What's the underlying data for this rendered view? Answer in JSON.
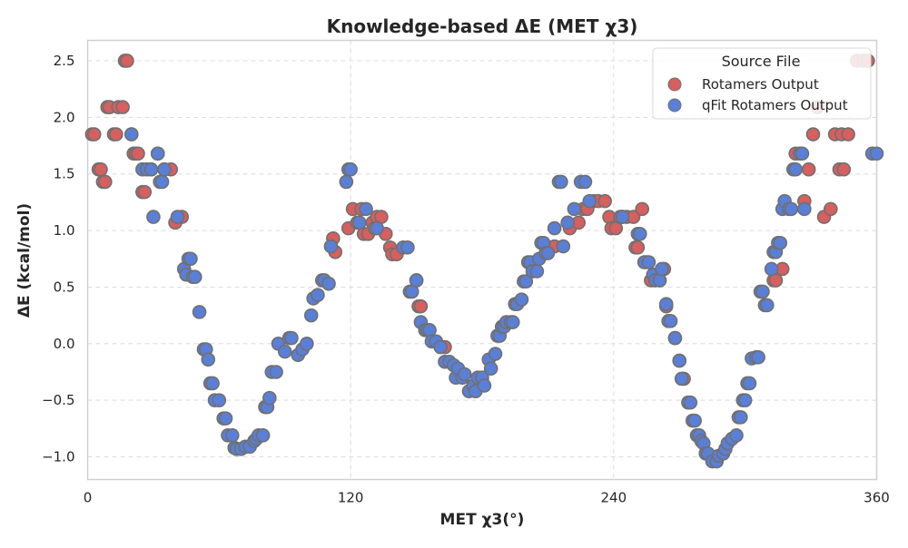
{
  "chart_data": {
    "type": "scatter",
    "title": "Knowledge-based ΔE (MET χ3)",
    "xlabel": "MET χ3(°)",
    "ylabel": "ΔE (kcal/mol)",
    "xlim": [
      0,
      360
    ],
    "ylim": [
      -1.2,
      2.68
    ],
    "xticks": [
      0,
      120,
      240,
      360
    ],
    "yticks": [
      -1.0,
      -0.5,
      0.0,
      0.5,
      1.0,
      1.5,
      2.0,
      2.5
    ],
    "xtick_labels": [
      "0",
      "120",
      "240",
      "360"
    ],
    "ytick_labels": [
      "−1.0",
      "−0.5",
      "0.0",
      "0.5",
      "1.0",
      "1.5",
      "2.0",
      "2.5"
    ],
    "grid": true,
    "legend": {
      "title": "Source File",
      "position": "top-right"
    },
    "series": [
      {
        "name": "Rotamers Output",
        "color": "#d65f5f",
        "points": [
          [
            2,
            1.85
          ],
          [
            3,
            1.85
          ],
          [
            5,
            1.54
          ],
          [
            6,
            1.54
          ],
          [
            7,
            1.43
          ],
          [
            8,
            1.43
          ],
          [
            9,
            2.09
          ],
          [
            10,
            2.09
          ],
          [
            12,
            1.85
          ],
          [
            13,
            1.85
          ],
          [
            14,
            2.09
          ],
          [
            16,
            2.09
          ],
          [
            17,
            2.5
          ],
          [
            18,
            2.5
          ],
          [
            20,
            1.85
          ],
          [
            21,
            1.68
          ],
          [
            22,
            1.68
          ],
          [
            23,
            1.68
          ],
          [
            25,
            1.34
          ],
          [
            26,
            1.34
          ],
          [
            29,
            1.54
          ],
          [
            32,
            1.68
          ],
          [
            35,
            1.54
          ],
          [
            38,
            1.54
          ],
          [
            40,
            1.07
          ],
          [
            43,
            1.12
          ],
          [
            112,
            0.93
          ],
          [
            113,
            0.81
          ],
          [
            119,
            1.02
          ],
          [
            121,
            1.19
          ],
          [
            123,
            1.07
          ],
          [
            125,
            1.19
          ],
          [
            126,
            0.97
          ],
          [
            128,
            0.97
          ],
          [
            130,
            1.07
          ],
          [
            131,
            1.02
          ],
          [
            132,
            1.12
          ],
          [
            134,
            1.12
          ],
          [
            136,
            0.97
          ],
          [
            138,
            0.85
          ],
          [
            139,
            0.79
          ],
          [
            141,
            0.79
          ],
          [
            150,
            0.56
          ],
          [
            151,
            0.33
          ],
          [
            152,
            0.33
          ],
          [
            163,
            -0.03
          ],
          [
            213,
            0.86
          ],
          [
            220,
            1.02
          ],
          [
            224,
            1.07
          ],
          [
            226,
            1.19
          ],
          [
            228,
            1.19
          ],
          [
            231,
            1.26
          ],
          [
            233,
            1.26
          ],
          [
            236,
            1.26
          ],
          [
            238,
            1.12
          ],
          [
            239,
            1.02
          ],
          [
            241,
            1.02
          ],
          [
            243,
            1.12
          ],
          [
            244,
            1.12
          ],
          [
            246,
            1.12
          ],
          [
            249,
            1.12
          ],
          [
            250,
            0.85
          ],
          [
            251,
            0.85
          ],
          [
            253,
            1.19
          ],
          [
            255,
            0.72
          ],
          [
            257,
            0.56
          ],
          [
            261,
            0.56
          ],
          [
            263,
            0.66
          ],
          [
            264,
            0.33
          ],
          [
            268,
            0.05
          ],
          [
            270,
            -0.15
          ],
          [
            272,
            -0.31
          ],
          [
            313,
            0.56
          ],
          [
            314,
            0.56
          ],
          [
            317,
            0.66
          ],
          [
            323,
            1.68
          ],
          [
            325,
            1.68
          ],
          [
            327,
            1.26
          ],
          [
            329,
            1.54
          ],
          [
            331,
            1.85
          ],
          [
            333,
            2.09
          ],
          [
            336,
            1.12
          ],
          [
            339,
            1.19
          ],
          [
            341,
            1.85
          ],
          [
            343,
            1.54
          ],
          [
            344,
            1.85
          ],
          [
            345,
            1.54
          ],
          [
            347,
            1.85
          ],
          [
            351,
            2.5
          ],
          [
            354,
            2.5
          ],
          [
            356,
            2.5
          ]
        ]
      },
      {
        "name": "qFit Rotamers Output",
        "color": "#5a7fd6",
        "points": [
          [
            20,
            1.85
          ],
          [
            25,
            1.54
          ],
          [
            27,
            1.54
          ],
          [
            29,
            1.54
          ],
          [
            30,
            1.12
          ],
          [
            32,
            1.68
          ],
          [
            33,
            1.43
          ],
          [
            34,
            1.43
          ],
          [
            35,
            1.54
          ],
          [
            41,
            1.12
          ],
          [
            44,
            0.66
          ],
          [
            45,
            0.61
          ],
          [
            46,
            0.75
          ],
          [
            47,
            0.75
          ],
          [
            48,
            0.59
          ],
          [
            49,
            0.59
          ],
          [
            51,
            0.28
          ],
          [
            53,
            -0.05
          ],
          [
            54,
            -0.05
          ],
          [
            55,
            -0.14
          ],
          [
            56,
            -0.35
          ],
          [
            57,
            -0.35
          ],
          [
            58,
            -0.5
          ],
          [
            60,
            -0.5
          ],
          [
            62,
            -0.66
          ],
          [
            63,
            -0.66
          ],
          [
            64,
            -0.81
          ],
          [
            66,
            -0.81
          ],
          [
            67,
            -0.92
          ],
          [
            68,
            -0.93
          ],
          [
            70,
            -0.93
          ],
          [
            72,
            -0.91
          ],
          [
            74,
            -0.91
          ],
          [
            76,
            -0.86
          ],
          [
            77,
            -0.84
          ],
          [
            78,
            -0.81
          ],
          [
            80,
            -0.81
          ],
          [
            81,
            -0.56
          ],
          [
            82,
            -0.56
          ],
          [
            83,
            -0.48
          ],
          [
            84,
            -0.25
          ],
          [
            86,
            -0.25
          ],
          [
            87,
            0.0
          ],
          [
            90,
            -0.07
          ],
          [
            92,
            0.05
          ],
          [
            93,
            0.05
          ],
          [
            96,
            -0.1
          ],
          [
            98,
            -0.05
          ],
          [
            100,
            0.0
          ],
          [
            102,
            0.25
          ],
          [
            103,
            0.4
          ],
          [
            105,
            0.43
          ],
          [
            107,
            0.56
          ],
          [
            108,
            0.56
          ],
          [
            110,
            0.53
          ],
          [
            111,
            0.86
          ],
          [
            118,
            1.43
          ],
          [
            119,
            1.54
          ],
          [
            120,
            1.54
          ],
          [
            124,
            1.07
          ],
          [
            127,
            1.19
          ],
          [
            132,
            1.02
          ],
          [
            144,
            0.85
          ],
          [
            146,
            0.85
          ],
          [
            147,
            0.46
          ],
          [
            148,
            0.46
          ],
          [
            150,
            0.56
          ],
          [
            152,
            0.19
          ],
          [
            154,
            0.12
          ],
          [
            155,
            0.12
          ],
          [
            156,
            0.12
          ],
          [
            157,
            0.02
          ],
          [
            159,
            0.02
          ],
          [
            161,
            -0.03
          ],
          [
            163,
            -0.16
          ],
          [
            165,
            -0.16
          ],
          [
            167,
            -0.19
          ],
          [
            168,
            -0.3
          ],
          [
            169,
            -0.22
          ],
          [
            171,
            -0.3
          ],
          [
            172,
            -0.27
          ],
          [
            174,
            -0.42
          ],
          [
            176,
            -0.37
          ],
          [
            177,
            -0.42
          ],
          [
            178,
            -0.3
          ],
          [
            180,
            -0.3
          ],
          [
            181,
            -0.37
          ],
          [
            183,
            -0.14
          ],
          [
            184,
            -0.22
          ],
          [
            186,
            -0.09
          ],
          [
            187,
            0.07
          ],
          [
            188,
            0.07
          ],
          [
            189,
            0.15
          ],
          [
            190,
            0.15
          ],
          [
            191,
            0.19
          ],
          [
            193,
            0.19
          ],
          [
            194,
            0.19
          ],
          [
            195,
            0.35
          ],
          [
            196,
            0.35
          ],
          [
            198,
            0.39
          ],
          [
            199,
            0.55
          ],
          [
            200,
            0.55
          ],
          [
            201,
            0.72
          ],
          [
            202,
            0.72
          ],
          [
            203,
            0.64
          ],
          [
            205,
            0.64
          ],
          [
            206,
            0.75
          ],
          [
            207,
            0.89
          ],
          [
            208,
            0.89
          ],
          [
            209,
            0.8
          ],
          [
            210,
            0.8
          ],
          [
            213,
            1.02
          ],
          [
            215,
            1.43
          ],
          [
            216,
            1.43
          ],
          [
            217,
            0.86
          ],
          [
            219,
            1.07
          ],
          [
            222,
            1.19
          ],
          [
            225,
            1.43
          ],
          [
            227,
            1.43
          ],
          [
            229,
            1.26
          ],
          [
            244,
            1.12
          ],
          [
            251,
            0.97
          ],
          [
            252,
            0.97
          ],
          [
            254,
            0.72
          ],
          [
            256,
            0.72
          ],
          [
            258,
            0.61
          ],
          [
            259,
            0.56
          ],
          [
            261,
            0.56
          ],
          [
            262,
            0.66
          ],
          [
            264,
            0.35
          ],
          [
            265,
            0.2
          ],
          [
            266,
            0.2
          ],
          [
            268,
            0.05
          ],
          [
            270,
            -0.15
          ],
          [
            271,
            -0.31
          ],
          [
            274,
            -0.52
          ],
          [
            275,
            -0.52
          ],
          [
            276,
            -0.68
          ],
          [
            277,
            -0.68
          ],
          [
            278,
            -0.81
          ],
          [
            279,
            -0.81
          ],
          [
            280,
            -0.86
          ],
          [
            281,
            -0.88
          ],
          [
            282,
            -0.97
          ],
          [
            283,
            -0.97
          ],
          [
            285,
            -1.04
          ],
          [
            287,
            -1.04
          ],
          [
            288,
            -0.99
          ],
          [
            290,
            -0.97
          ],
          [
            291,
            -0.93
          ],
          [
            292,
            -0.88
          ],
          [
            294,
            -0.84
          ],
          [
            296,
            -0.81
          ],
          [
            297,
            -0.65
          ],
          [
            298,
            -0.65
          ],
          [
            299,
            -0.5
          ],
          [
            300,
            -0.5
          ],
          [
            301,
            -0.35
          ],
          [
            302,
            -0.35
          ],
          [
            303,
            -0.13
          ],
          [
            305,
            -0.12
          ],
          [
            306,
            -0.12
          ],
          [
            307,
            0.46
          ],
          [
            308,
            0.46
          ],
          [
            309,
            0.34
          ],
          [
            310,
            0.34
          ],
          [
            312,
            0.66
          ],
          [
            313,
            0.81
          ],
          [
            314,
            0.81
          ],
          [
            315,
            0.89
          ],
          [
            316,
            0.89
          ],
          [
            317,
            1.19
          ],
          [
            318,
            1.26
          ],
          [
            320,
            1.19
          ],
          [
            321,
            1.19
          ],
          [
            322,
            1.54
          ],
          [
            323,
            1.54
          ],
          [
            325,
            1.68
          ],
          [
            326,
            1.68
          ],
          [
            327,
            1.19
          ],
          [
            358,
            1.68
          ],
          [
            360,
            1.68
          ]
        ]
      }
    ]
  }
}
